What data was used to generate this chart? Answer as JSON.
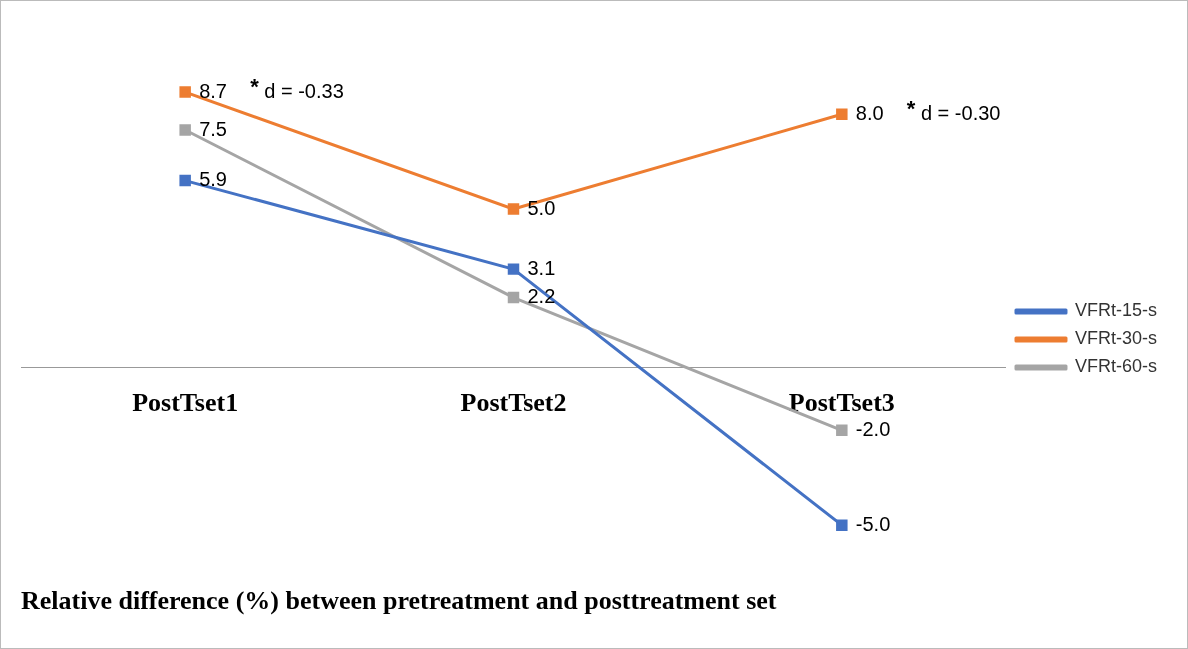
{
  "chart_data": {
    "type": "line",
    "title": "Relative difference (%) between pretreatment and posttreatment set",
    "categories": [
      "PostTset1",
      "PostTset2",
      "PostTset3"
    ],
    "series": [
      {
        "name": "VFRt-15-s",
        "color": "#4472c4",
        "values": [
          5.9,
          3.1,
          -5.0
        ],
        "value_labels": [
          "5.9",
          "3.1",
          "-5.0"
        ]
      },
      {
        "name": "VFRt-30-s",
        "color": "#ed7d31",
        "values": [
          8.7,
          5.0,
          8.0
        ],
        "value_labels": [
          "8.7",
          "5.0",
          "8.0"
        ]
      },
      {
        "name": "VFRt-60-s",
        "color": "#a5a5a5",
        "values": [
          7.5,
          2.2,
          -2.0
        ],
        "value_labels": [
          "7.5",
          "2.2",
          "-2.0"
        ]
      }
    ],
    "marker": "square",
    "line_style": "solid",
    "grid": false,
    "legend": "right",
    "annotations": [
      {
        "text": "* d = -0.33",
        "x": "PostTset1",
        "y": 8.7
      },
      {
        "text": "* d = -0.30",
        "x": "PostTset3",
        "y": 8.0
      }
    ]
  }
}
